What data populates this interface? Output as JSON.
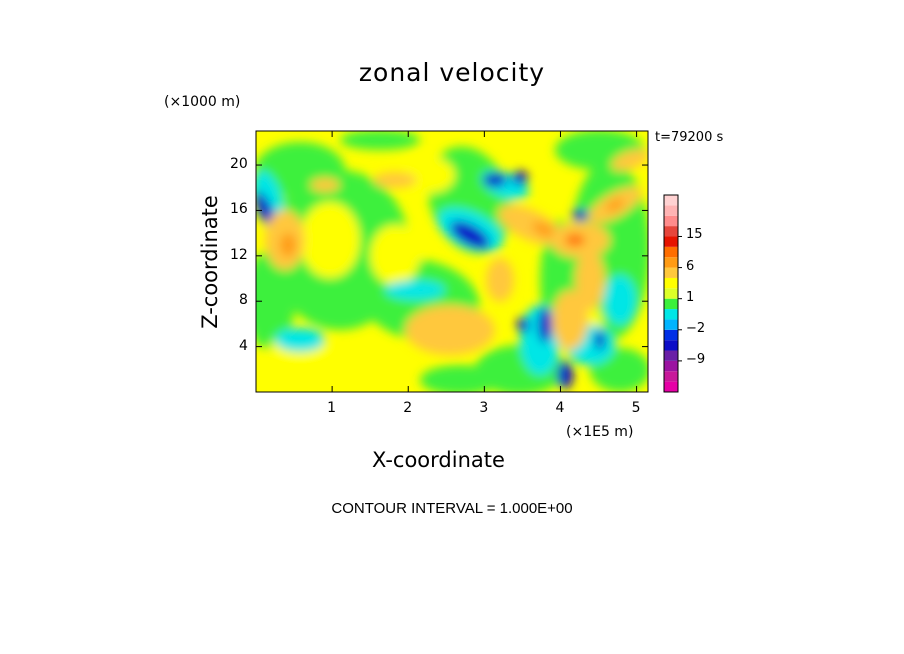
{
  "chart_data": {
    "type": "heatmap",
    "title": "zonal velocity",
    "xlabel": "X-coordinate",
    "ylabel": "Z-coordinate",
    "x_units": "(×1E5 m)",
    "z_units": "(×1000 m)",
    "time_label": "t=79200 s",
    "contour_interval": "CONTOUR INTERVAL = 1.000E+00",
    "xlim": [
      0,
      5.15
    ],
    "ylim": [
      0,
      23
    ],
    "x_ticks": [
      "1",
      "2",
      "3",
      "4",
      "5"
    ],
    "x_tick_values": [
      1,
      2,
      3,
      4,
      5
    ],
    "z_ticks": [
      "4",
      "8",
      "12",
      "16",
      "20"
    ],
    "z_tick_values": [
      4,
      8,
      12,
      16,
      20
    ],
    "colorbar": {
      "levels": [
        -15,
        -12,
        -9,
        -6,
        -3,
        -2,
        -1,
        0,
        1,
        2,
        3,
        6,
        9,
        12,
        15,
        18
      ],
      "labels": [
        "15",
        "6",
        "1",
        "−2",
        "−9"
      ],
      "label_values": [
        15,
        6,
        1,
        -2,
        -9
      ],
      "colors": [
        "#e600a6",
        "#c8189a",
        "#9b13a1",
        "#6a1fa6",
        "#0d0dc7",
        "#0030e6",
        "#00b4ff",
        "#00e6e6",
        "#3cf03c",
        "#dcff28",
        "#ffff00",
        "#ffc83c",
        "#ff9b14",
        "#ff6e00",
        "#e61400",
        "#e6463c",
        "#ff8c8c",
        "#ffb4b4",
        "#ffd2d2"
      ]
    }
  }
}
